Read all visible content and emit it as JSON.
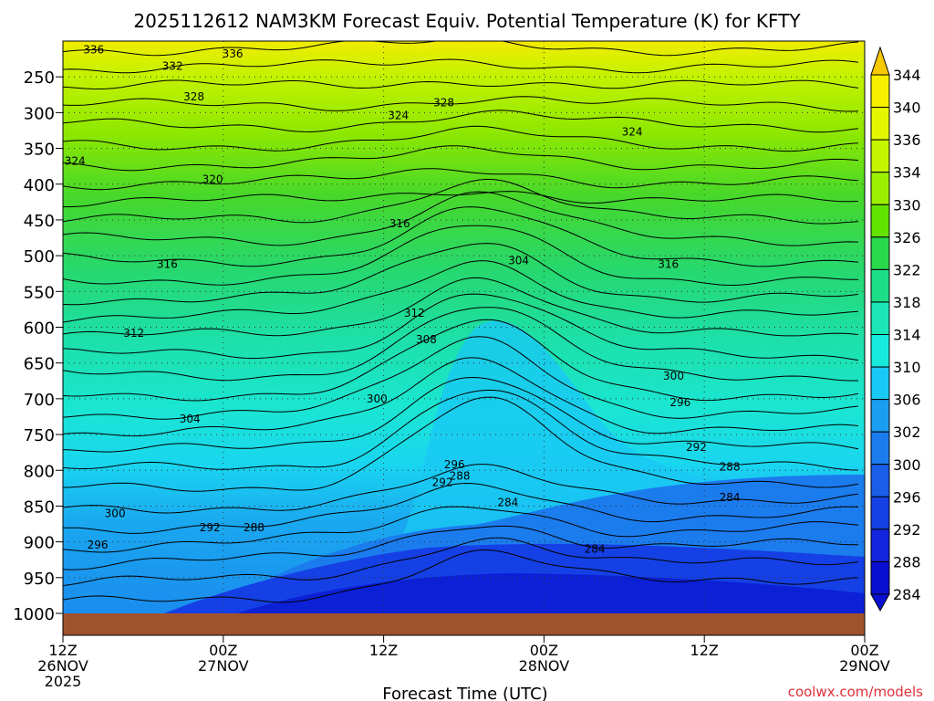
{
  "chart_data": {
    "type": "heatmap",
    "title": "2025112612 NAM3KM Forecast Equiv. Potential Temperature (K) for KFTY",
    "xlabel": "Forecast Time (UTC)",
    "ylabel": "",
    "credit": "coolwx.com/models",
    "x_ticks": [
      {
        "t": 0,
        "l1": "12Z",
        "l2": "26NOV",
        "l3": "2025"
      },
      {
        "t": 12,
        "l1": "00Z",
        "l2": "27NOV",
        "l3": ""
      },
      {
        "t": 24,
        "l1": "12Z",
        "l2": "",
        "l3": ""
      },
      {
        "t": 36,
        "l1": "00Z",
        "l2": "28NOV",
        "l3": ""
      },
      {
        "t": 48,
        "l1": "12Z",
        "l2": "",
        "l3": ""
      },
      {
        "t": 60,
        "l1": "00Z",
        "l2": "29NOV",
        "l3": ""
      }
    ],
    "xlim": [
      0,
      60
    ],
    "y_ticks": [
      250,
      300,
      350,
      400,
      450,
      500,
      550,
      600,
      650,
      700,
      750,
      800,
      850,
      900,
      950,
      1000
    ],
    "ylim_hPa": [
      200,
      1000
    ],
    "colorbar_ticks": [
      344,
      340,
      336,
      334,
      330,
      326,
      322,
      318,
      314,
      310,
      306,
      302,
      300,
      296,
      292,
      288,
      284
    ],
    "colorbar_colors": [
      "#f5c800",
      "#f7ee00",
      "#e4f700",
      "#c6f500",
      "#9af000",
      "#62e200",
      "#2ad84c",
      "#1dde87",
      "#1be6b8",
      "#19eade",
      "#19c8f4",
      "#1a9ef2",
      "#1b7cee",
      "#1a5ee8",
      "#1540e5",
      "#1025dc",
      "#0a10d0"
    ],
    "ground_color": "#a0522d",
    "contour_labels": [
      {
        "v": "336",
        "t": 2.3,
        "p": 212
      },
      {
        "v": "336",
        "t": 12.7,
        "p": 218
      },
      {
        "v": "332",
        "t": 8.2,
        "p": 235
      },
      {
        "v": "328",
        "t": 9.8,
        "p": 278
      },
      {
        "v": "328",
        "t": 28.5,
        "p": 286
      },
      {
        "v": "324",
        "t": 25.1,
        "p": 304
      },
      {
        "v": "324",
        "t": 42.6,
        "p": 327
      },
      {
        "v": "324",
        "t": 0.9,
        "p": 368
      },
      {
        "v": "320",
        "t": 11.2,
        "p": 393
      },
      {
        "v": "316",
        "t": 25.2,
        "p": 455
      },
      {
        "v": "316",
        "t": 7.8,
        "p": 512
      },
      {
        "v": "316",
        "t": 45.3,
        "p": 512
      },
      {
        "v": "312",
        "t": 26.3,
        "p": 580
      },
      {
        "v": "312",
        "t": 5.3,
        "p": 608
      },
      {
        "v": "308",
        "t": 27.2,
        "p": 617
      },
      {
        "v": "304",
        "t": 34.1,
        "p": 507
      },
      {
        "v": "304",
        "t": 9.5,
        "p": 728
      },
      {
        "v": "300",
        "t": 23.5,
        "p": 700
      },
      {
        "v": "300",
        "t": 45.7,
        "p": 668
      },
      {
        "v": "300",
        "t": 3.9,
        "p": 860
      },
      {
        "v": "296",
        "t": 46.2,
        "p": 705
      },
      {
        "v": "296",
        "t": 29.3,
        "p": 792
      },
      {
        "v": "296",
        "t": 2.6,
        "p": 904
      },
      {
        "v": "292",
        "t": 47.4,
        "p": 768
      },
      {
        "v": "292",
        "t": 28.4,
        "p": 817
      },
      {
        "v": "292",
        "t": 11.0,
        "p": 880
      },
      {
        "v": "288",
        "t": 49.9,
        "p": 795
      },
      {
        "v": "288",
        "t": 29.7,
        "p": 808
      },
      {
        "v": "288",
        "t": 14.3,
        "p": 880
      },
      {
        "v": "284",
        "t": 33.3,
        "p": 845
      },
      {
        "v": "284",
        "t": 49.9,
        "p": 838
      },
      {
        "v": "284",
        "t": 39.8,
        "p": 910
      }
    ]
  }
}
